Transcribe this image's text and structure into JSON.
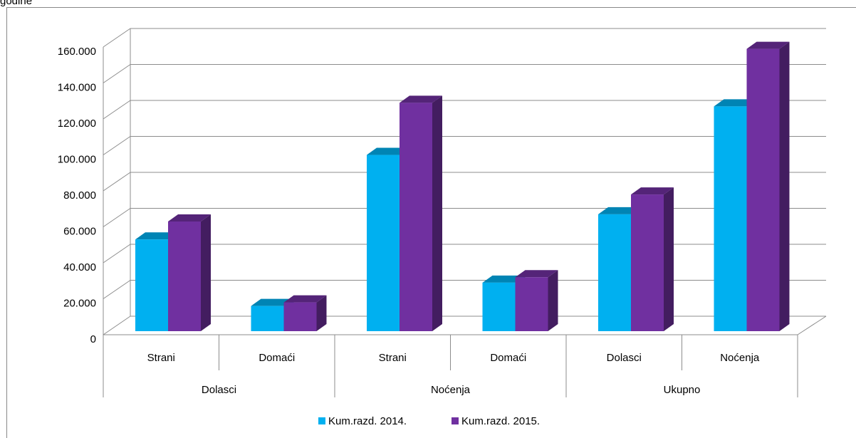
{
  "caption": "godine",
  "chart_data": {
    "type": "bar3d",
    "categories": [
      "Strani",
      "Domaći",
      "Strani",
      "Domaći",
      "Dolasci",
      "Noćenja"
    ],
    "category_groups": [
      "Dolasci",
      "Noćenja",
      "Ukupno"
    ],
    "series": [
      {
        "name": "Kum.razd. 2014.",
        "color": "#00b0f0",
        "values": [
          51000,
          14000,
          98000,
          27000,
          65000,
          125000
        ]
      },
      {
        "name": "Kum.razd. 2015.",
        "color": "#7030a0",
        "values": [
          61000,
          16000,
          127000,
          30000,
          76000,
          157000
        ]
      }
    ],
    "ylim": [
      0,
      160000
    ],
    "yticks": [
      0,
      {
        "value": 20000,
        "label": "20.000"
      },
      {
        "value": 40000,
        "label": "40.000"
      },
      {
        "value": 60000,
        "label": "60.000"
      },
      {
        "value": 80000,
        "label": "80.000"
      },
      {
        "value": 100000,
        "label": "100.000"
      },
      {
        "value": 120000,
        "label": "120.000"
      },
      {
        "value": 140000,
        "label": "140.000"
      },
      {
        "value": 160000,
        "label": "160.000"
      }
    ],
    "grid": true,
    "legend": "bottom"
  }
}
